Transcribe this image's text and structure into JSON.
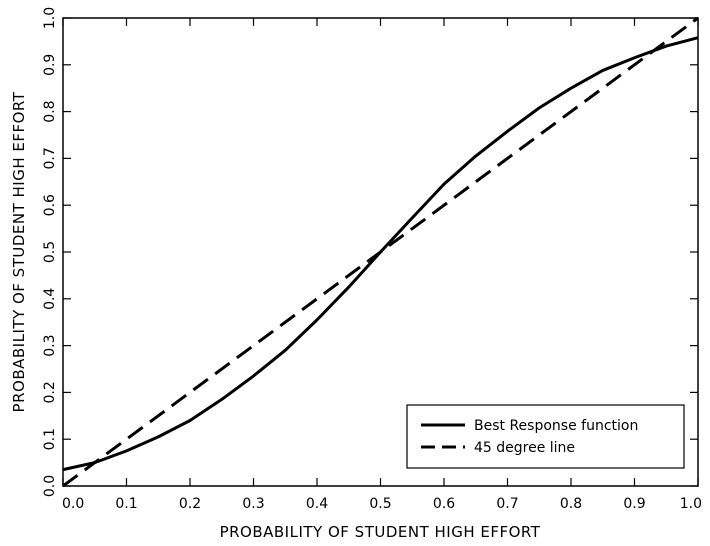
{
  "chart_data": {
    "type": "line",
    "title": "",
    "xlabel": "PROBABILITY OF STUDENT HIGH EFFORT",
    "ylabel": "PROBABILITY OF STUDENT HIGH EFFORT",
    "xlim": [
      0.0,
      1.0
    ],
    "ylim": [
      0.0,
      1.0
    ],
    "x_ticks": [
      "0.0",
      "0.1",
      "0.2",
      "0.3",
      "0.4",
      "0.5",
      "0.6",
      "0.7",
      "0.8",
      "0.9",
      "1.0"
    ],
    "y_ticks": [
      "0.0",
      "0.1",
      "0.2",
      "0.3",
      "0.4",
      "0.5",
      "0.6",
      "0.7",
      "0.8",
      "0.9",
      "1.0"
    ],
    "grid": false,
    "legend_position": "bottom-right",
    "series": [
      {
        "name": "Best Response function",
        "style": "solid",
        "x": [
          0.0,
          0.05,
          0.1,
          0.15,
          0.2,
          0.25,
          0.3,
          0.35,
          0.4,
          0.45,
          0.5,
          0.55,
          0.6,
          0.65,
          0.7,
          0.75,
          0.8,
          0.85,
          0.9,
          0.95,
          1.0
        ],
        "y": [
          0.035,
          0.05,
          0.075,
          0.105,
          0.14,
          0.185,
          0.235,
          0.29,
          0.355,
          0.425,
          0.5,
          0.573,
          0.645,
          0.705,
          0.758,
          0.808,
          0.85,
          0.888,
          0.915,
          0.94,
          0.958
        ]
      },
      {
        "name": "45 degree line",
        "style": "dashed",
        "x": [
          0.0,
          1.0
        ],
        "y": [
          0.0,
          1.0
        ]
      }
    ]
  }
}
